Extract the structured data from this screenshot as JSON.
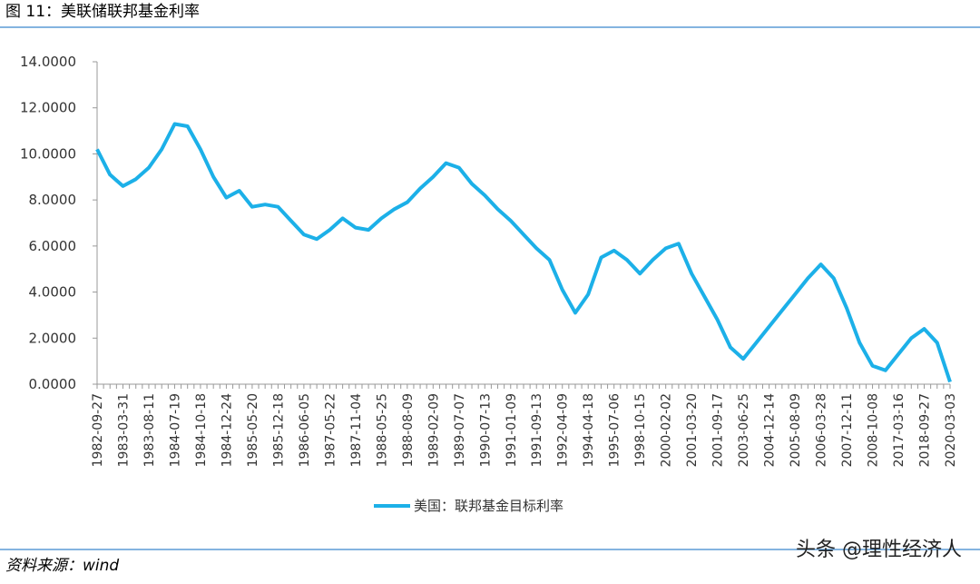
{
  "chart_data": {
    "type": "line",
    "title": "图 11：美联储联邦基金利率",
    "source": "资料来源：wind",
    "watermark": "头条 @理性经济人",
    "categories": [
      "1982-09-27",
      null,
      "1983-03-31",
      null,
      "1983-08-11",
      null,
      "1984-07-19",
      null,
      "1984-10-18",
      null,
      "1984-12-24",
      null,
      "1985-05-20",
      null,
      "1985-12-18",
      null,
      "1986-06-05",
      null,
      "1987-05-22",
      null,
      "1987-11-04",
      null,
      "1988-05-25",
      null,
      "1988-08-09",
      null,
      "1989-02-09",
      null,
      "1989-07-07",
      null,
      "1990-07-13",
      null,
      "1991-01-09",
      null,
      "1991-09-13",
      null,
      "1992-04-09",
      null,
      "1994-04-18",
      null,
      "1995-07-06",
      null,
      "1998-10-15",
      null,
      "2000-02-02",
      null,
      "2001-03-20",
      null,
      "2001-09-17",
      null,
      "2003-06-25",
      null,
      "2004-12-14",
      null,
      "2005-08-09",
      null,
      "2006-03-28",
      null,
      "2007-12-11",
      null,
      "2008-10-08",
      null,
      "2017-03-16",
      null,
      "2018-09-27",
      null,
      "2020-03-03"
    ],
    "series": [
      {
        "name": "美国：联邦基金目标利率",
        "color": "#1cb0e8",
        "values": [
          10.2,
          9.1,
          8.6,
          8.9,
          9.4,
          10.2,
          11.3,
          11.2,
          10.2,
          9.0,
          8.1,
          8.4,
          7.7,
          7.8,
          7.7,
          7.1,
          6.5,
          6.3,
          6.7,
          7.2,
          6.8,
          6.7,
          7.2,
          7.6,
          7.9,
          8.5,
          9.0,
          9.6,
          9.4,
          8.7,
          8.2,
          7.6,
          7.1,
          6.5,
          5.9,
          5.4,
          4.1,
          3.1,
          3.9,
          5.5,
          5.8,
          5.4,
          4.8,
          5.4,
          5.9,
          6.1,
          4.8,
          3.8,
          2.8,
          1.6,
          1.1,
          1.8,
          2.5,
          3.2,
          3.9,
          4.6,
          5.2,
          4.6,
          3.3,
          1.8,
          0.8,
          0.6,
          1.3,
          2.0,
          2.4,
          1.8,
          0.1
        ]
      }
    ],
    "ylim": [
      0,
      14
    ],
    "yticks": [
      {
        "value": 0,
        "label": "0.0000"
      },
      {
        "value": 2,
        "label": "2.0000"
      },
      {
        "value": 4,
        "label": "4.0000"
      },
      {
        "value": 6,
        "label": "6.0000"
      },
      {
        "value": 8,
        "label": "8.0000"
      },
      {
        "value": 10,
        "label": "10.0000"
      },
      {
        "value": 12,
        "label": "12.0000"
      },
      {
        "value": 14,
        "label": "14.0000"
      }
    ],
    "grid": false,
    "legend": "bottom"
  }
}
